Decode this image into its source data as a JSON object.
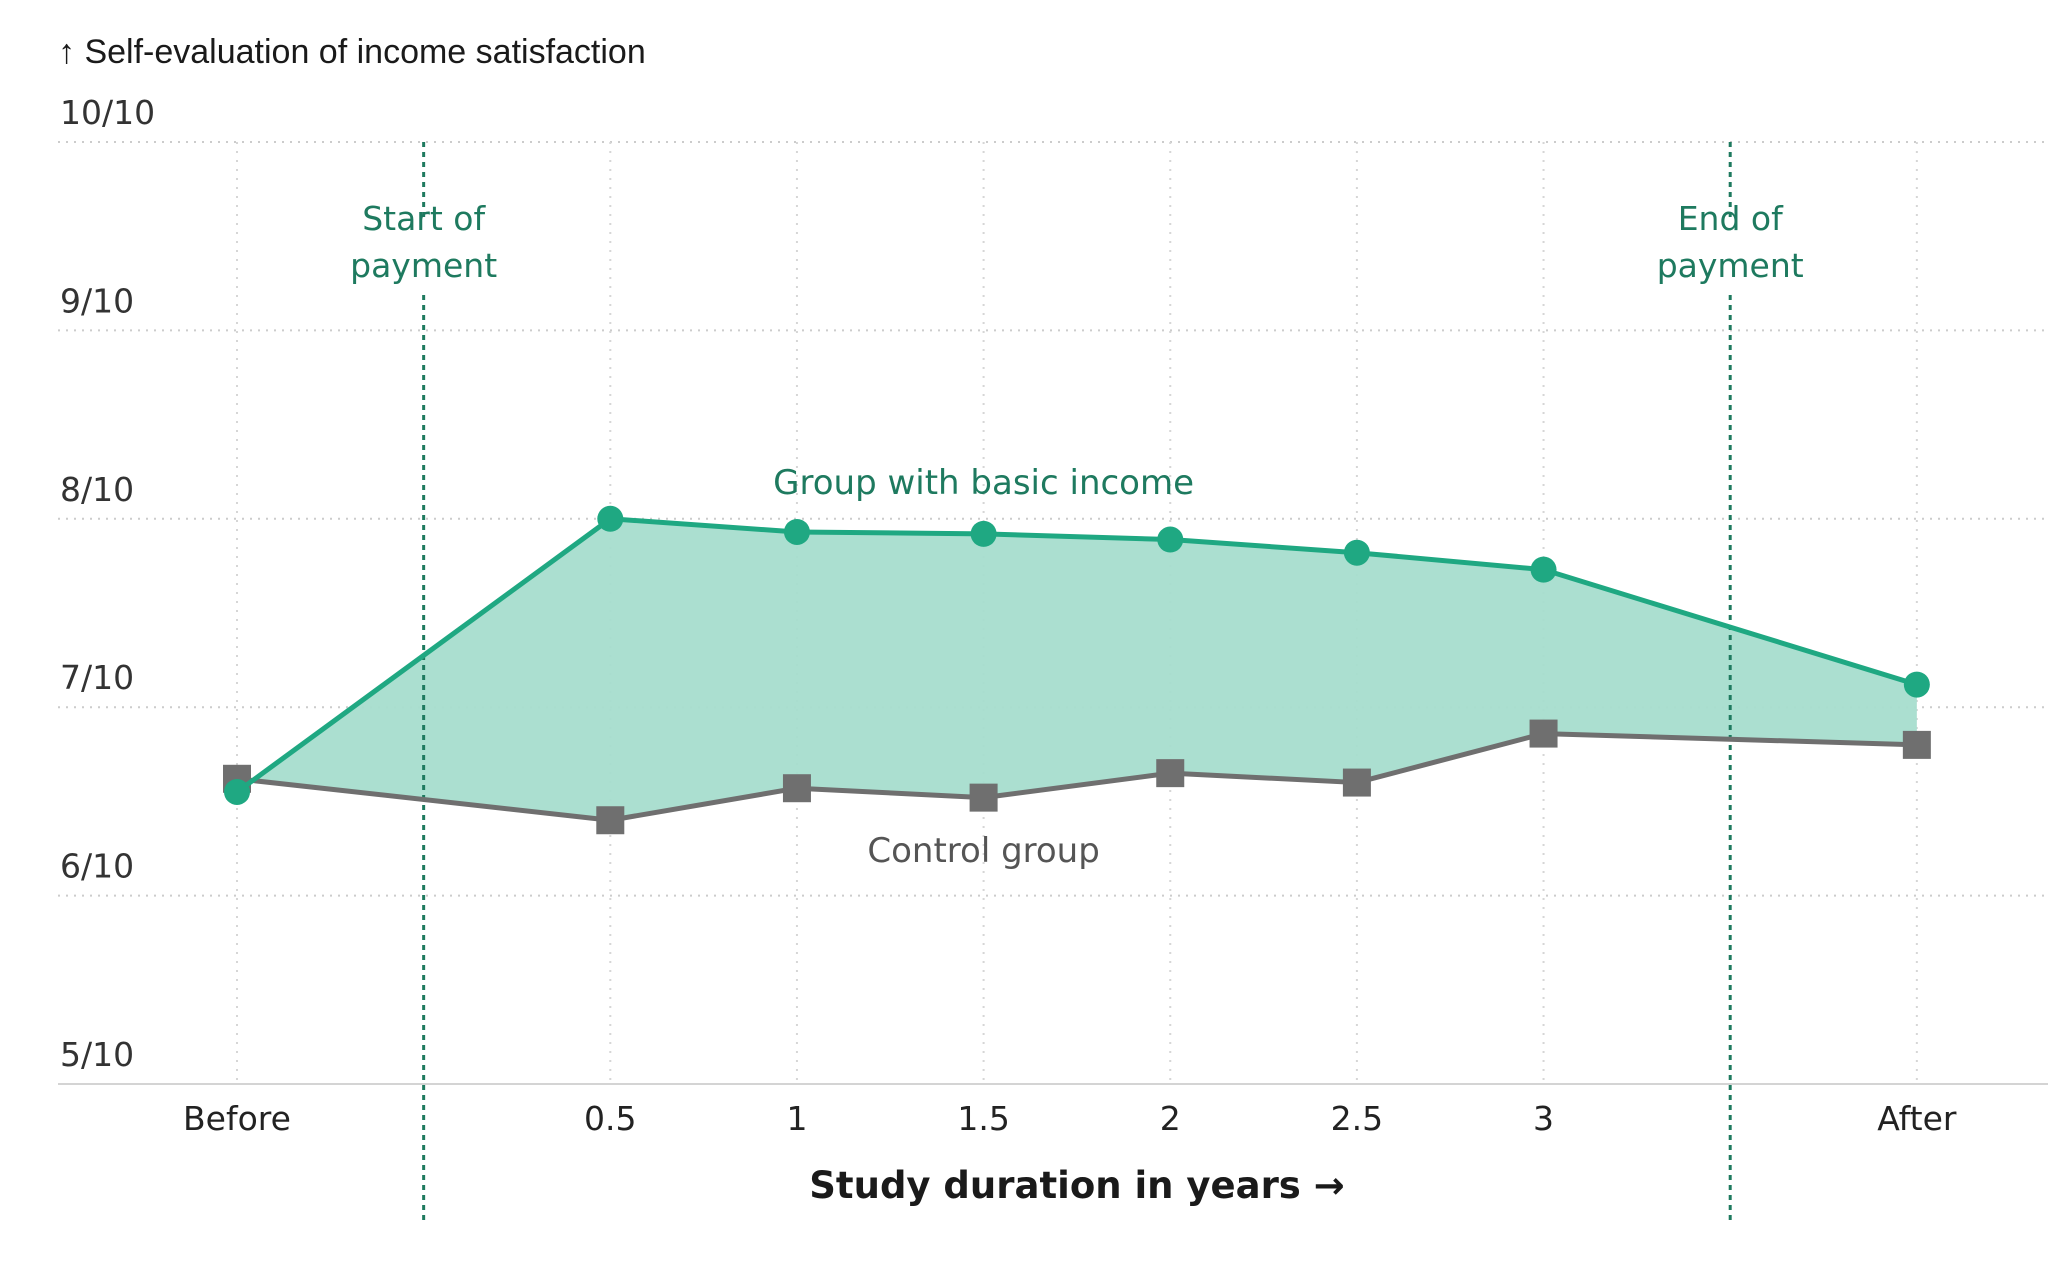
{
  "chart_data": {
    "type": "line",
    "title": "",
    "ylabel": "↑ Self-evaluation of income satisfaction",
    "xlabel": "Study duration in years →",
    "categories": [
      "Before",
      "0.5",
      "1",
      "1.5",
      "2",
      "2.5",
      "3",
      "After"
    ],
    "y_ticks": [
      "5/10",
      "6/10",
      "7/10",
      "8/10",
      "9/10",
      "10/10"
    ],
    "ylim": [
      5,
      10
    ],
    "grid": true,
    "series": [
      {
        "name": "Group with basic income",
        "color": "#1fa882",
        "marker": "circle",
        "values": [
          6.55,
          8.0,
          7.93,
          7.92,
          7.89,
          7.82,
          7.73,
          7.12
        ]
      },
      {
        "name": "Control group",
        "color": "#6f6f6f",
        "marker": "square",
        "values": [
          6.62,
          6.4,
          6.57,
          6.52,
          6.65,
          6.6,
          6.86,
          6.8
        ]
      }
    ],
    "fill_between": {
      "series": [
        0,
        1
      ],
      "color": "#a6ddcd"
    },
    "annotations": [
      {
        "text_lines": [
          "Start of",
          "payment"
        ],
        "x_between": [
          "Before",
          "0.5"
        ],
        "color": "#1e7a5f"
      },
      {
        "text_lines": [
          "End of",
          "payment"
        ],
        "x_between": [
          "3",
          "After"
        ],
        "color": "#1e7a5f"
      }
    ]
  }
}
